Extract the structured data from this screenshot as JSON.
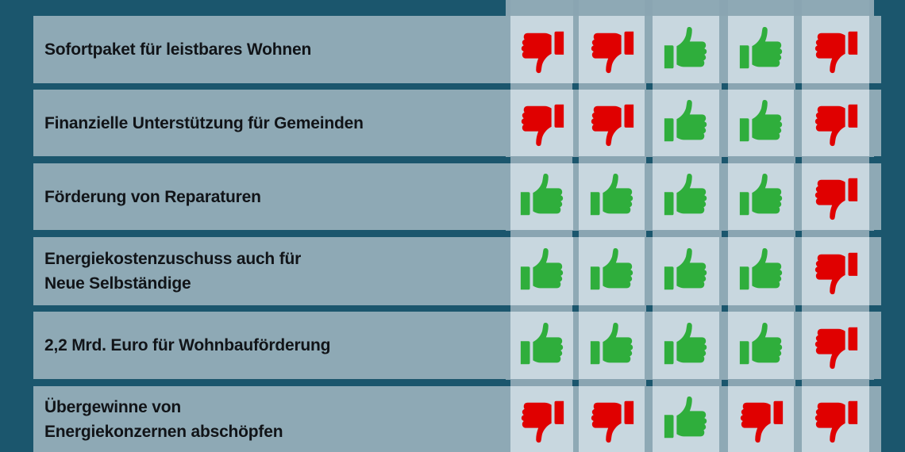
{
  "colors": {
    "background": "#1b566d",
    "label_area": "#8ea9b5",
    "cell": "#c8d7df",
    "thumbs_up": "#2fae3c",
    "thumbs_down": "#e00000"
  },
  "columns": 5,
  "rows": [
    {
      "label": "Sofortpaket für leistbares Wohnen",
      "votes": [
        "down",
        "down",
        "up",
        "up",
        "down"
      ]
    },
    {
      "label": "Finanzielle Unterstützung für Gemeinden",
      "votes": [
        "down",
        "down",
        "up",
        "up",
        "down"
      ]
    },
    {
      "label": "Förderung von Reparaturen",
      "votes": [
        "up",
        "up",
        "up",
        "up",
        "down"
      ]
    },
    {
      "label": "Energiekostenzuschuss auch für\nNeue Selbständige",
      "votes": [
        "up",
        "up",
        "up",
        "up",
        "down"
      ]
    },
    {
      "label": "2,2 Mrd. Euro für Wohnbauförderung",
      "votes": [
        "up",
        "up",
        "up",
        "up",
        "down"
      ]
    },
    {
      "label": "Übergewinne von\nEnergiekonzernen abschöpfen",
      "votes": [
        "down",
        "down",
        "up",
        "down",
        "down"
      ]
    }
  ],
  "icons": {
    "up": "thumbs-up-icon",
    "down": "thumbs-down-icon"
  }
}
